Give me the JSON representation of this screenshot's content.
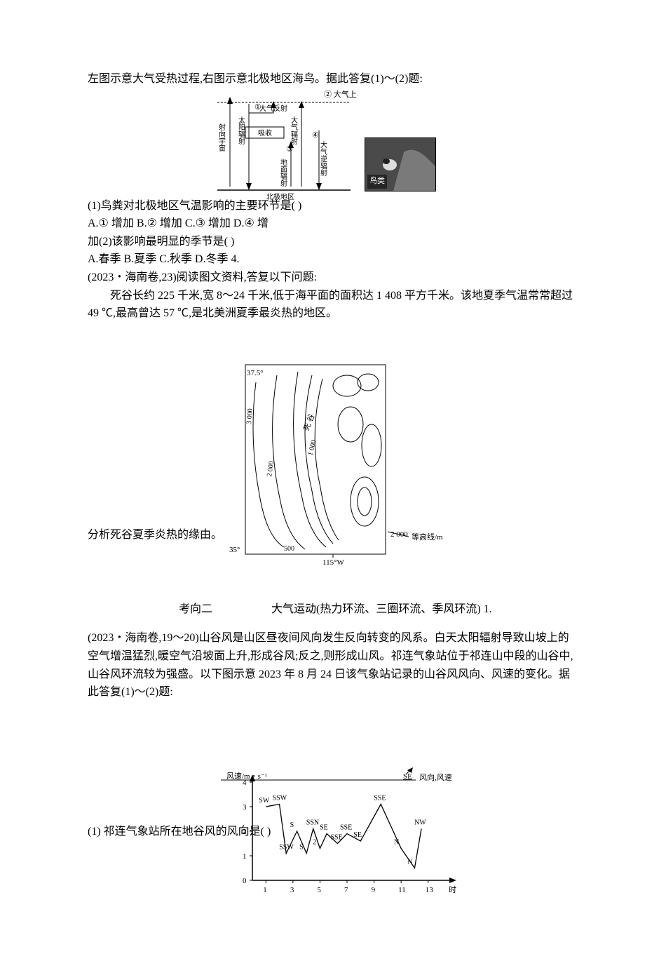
{
  "intro1": "左图示意大气受热过程,右图示意北极地区海鸟。据此答复(1)～(2)题:",
  "fig1": {
    "labels": {
      "top_boundary": "② 大气上界",
      "arrow_space": "射向宇宙",
      "sun": "太阳辐射",
      "reflect": "① 大气反射",
      "absorb": "吸收",
      "atm_rad": "大气辐射",
      "ground": "③ 地面辐射",
      "back": "④ 大气逆辐射",
      "surface": "北极地区",
      "bird": "鸟类"
    },
    "colors": {
      "stroke": "#000000",
      "dash": "3,2",
      "photo_bg": "#404040",
      "photo_rock": "#888888"
    }
  },
  "q1_1": "(1)鸟粪对北极地区气温影响的主要环节是(    )",
  "q1_1_opts": "A.① 增加    B.② 增加    C.③ 增加    D.④ 增",
  "q1_2": "加(2)该影响最明显的季节是(  )",
  "q1_2_opts": "A.春季    B.夏季    C.秋季    D.冬季 4.",
  "q4_src": "(2023・海南卷,23)阅读图文资料,答复以下问题:",
  "q4_body": "死谷长约 225 千米,宽 8～24 千米,低于海平面的面积达 1 408 平方千米。该地夏季气温常常超过 49 ℃,最高曾达 57 ℃,是北美洲夏季最炎热的地区。",
  "fig2": {
    "labels": {
      "lat_top": "37.5°",
      "lat_bot": "35°",
      "lon": "115°W",
      "contours": [
        "3 000",
        "2 000",
        "1 000",
        "500",
        "2 000"
      ],
      "legend": "等高线/m",
      "valley": "死谷"
    },
    "colors": {
      "stroke": "#000000"
    }
  },
  "q4_q": "分析死谷夏季炎热的缘由。",
  "exam2_title": "考向二",
  "exam2_subtitle": "大气运动(热力环流、三圈环流、季风环流)  1.",
  "q5_body": "(2023・海南卷,19～20)山谷风是山区昼夜间风向发生反向转变的风系。白天太阳辐射导致山坡上的空气增温猛烈,暖空气沿坡面上升,形成谷风;反之,则形成山风。祁连气象站位于祁连山中段的山谷中,山谷风环流较为强盛。以下图示意 2023 年 8 月 24 日该气象站记录的山谷风风向、风速的变化。据此答复(1)～(2)题:",
  "fig3": {
    "ylabel": "风速/m・s⁻¹",
    "xlabel": "时",
    "legend_dir": "风向",
    "legend_spd": "风速",
    "legend_arrow": "SE",
    "y_ticks": [
      0,
      1,
      2,
      3,
      4
    ],
    "x_ticks": [
      1,
      3,
      5,
      7,
      9,
      11,
      13
    ],
    "points": [
      {
        "x": 1,
        "y": 3.0,
        "d": "SW"
      },
      {
        "x": 2,
        "y": 3.1,
        "d": "SSW"
      },
      {
        "x": 2.5,
        "y": 1.1,
        "d": "SSW"
      },
      {
        "x": 3.3,
        "y": 2.0,
        "d": "S"
      },
      {
        "x": 4,
        "y": 1.1,
        "d": "S"
      },
      {
        "x": 4.5,
        "y": 2.1,
        "d": "SSN"
      },
      {
        "x": 5,
        "y": 1.3,
        "d": "2"
      },
      {
        "x": 5.5,
        "y": 1.9,
        "d": "SE"
      },
      {
        "x": 6.3,
        "y": 1.5,
        "d": "SSE"
      },
      {
        "x": 7,
        "y": 1.9,
        "d": "SSE"
      },
      {
        "x": 8,
        "y": 1.6,
        "d": "SE"
      },
      {
        "x": 9.5,
        "y": 3.1,
        "d": "SSE"
      },
      {
        "x": 11,
        "y": 1.3,
        "d": "N"
      },
      {
        "x": 12,
        "y": 0.5,
        "d": "N"
      },
      {
        "x": 12.5,
        "y": 2.1,
        "d": "NW"
      }
    ],
    "colors": {
      "stroke": "#000000"
    }
  },
  "q5_1": "(1) 祁连气象站所在地谷风的风向是(    )"
}
